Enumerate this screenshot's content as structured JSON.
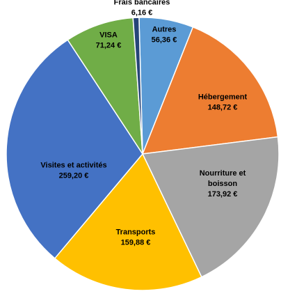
{
  "chart_data": {
    "type": "pie",
    "title": "",
    "start_angle_deg": -1.5,
    "direction": "clockwise",
    "slices": [
      {
        "label": "Autres",
        "value": 56.36,
        "value_label": "56,36 €",
        "color": "#5B9BD5",
        "label_color": "#000000",
        "label_position": "inside"
      },
      {
        "label": "Hébergement",
        "value": 148.72,
        "value_label": "148,72 €",
        "color": "#ED7D31",
        "label_color": "#000000",
        "label_position": "inside"
      },
      {
        "label": "Nourriture et boisson",
        "label_lines": [
          "Nourriture et",
          "boisson"
        ],
        "value": 173.92,
        "value_label": "173,92 €",
        "color": "#A5A5A5",
        "label_color": "#000000",
        "label_position": "inside"
      },
      {
        "label": "Transports",
        "value": 159.88,
        "value_label": "159,88 €",
        "color": "#FFC000",
        "label_color": "#000000",
        "label_position": "inside"
      },
      {
        "label": "Visites et activités",
        "value": 259.2,
        "value_label": "259,20 €",
        "color": "#4472C4",
        "label_color": "#000000",
        "label_position": "inside"
      },
      {
        "label": "VISA",
        "value": 71.24,
        "value_label": "71,24 €",
        "color": "#70AD47",
        "label_color": "#000000",
        "label_position": "inside"
      },
      {
        "label": "Frais bancaires",
        "value": 6.16,
        "value_label": "6,16 €",
        "color": "#264478",
        "label_color": "#000000",
        "label_position": "outside"
      }
    ]
  }
}
